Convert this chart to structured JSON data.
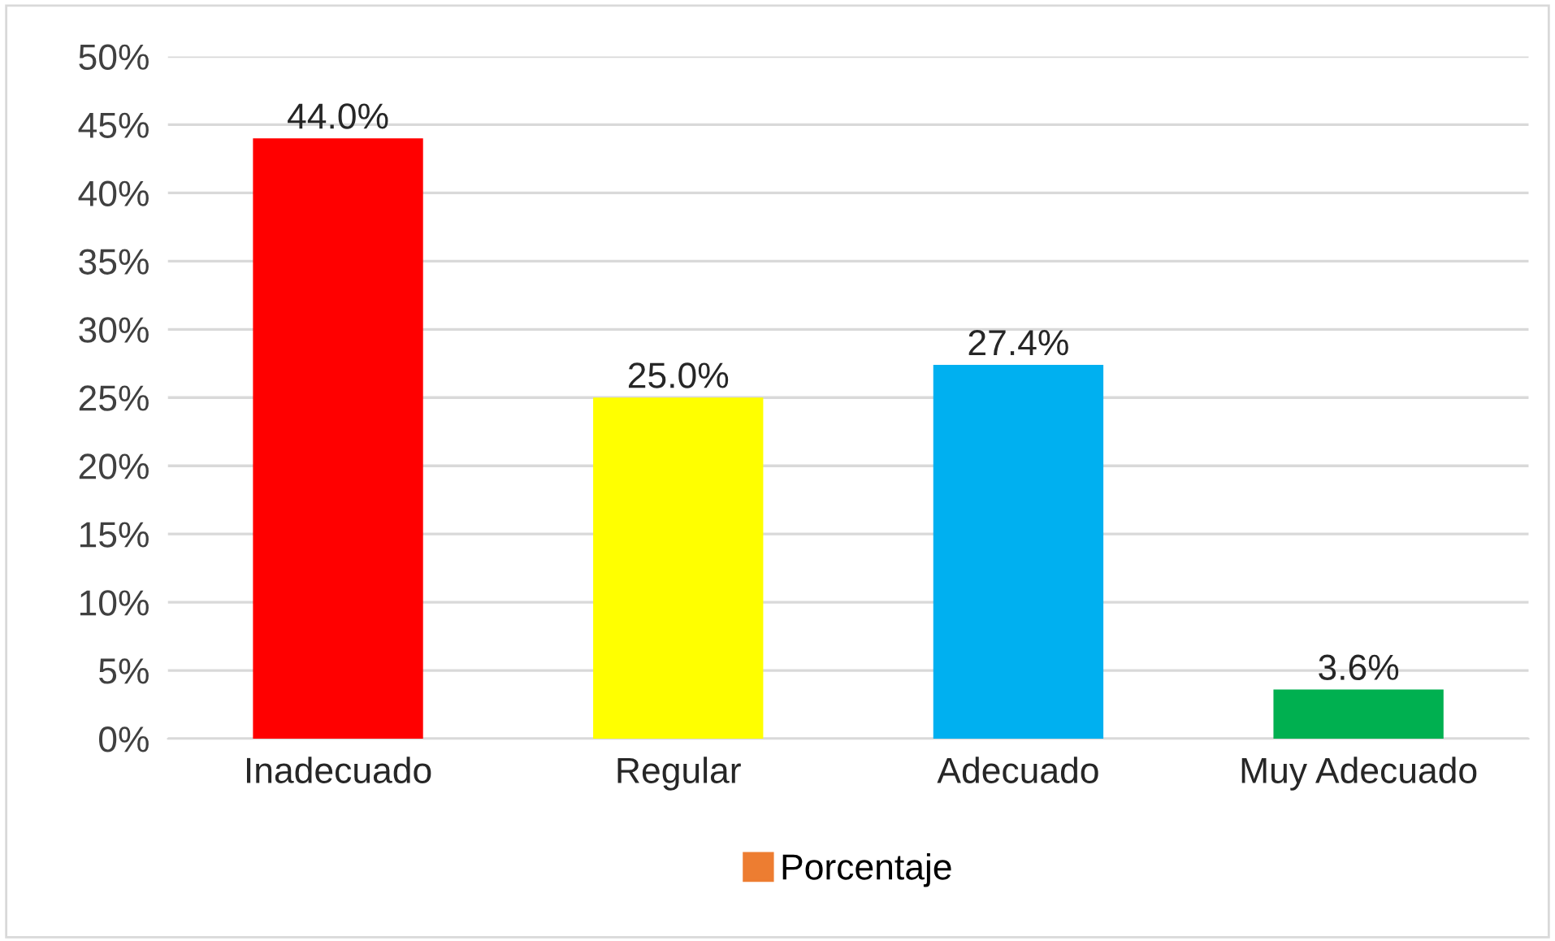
{
  "chart_data": {
    "type": "bar",
    "categories": [
      "Inadecuado",
      "Regular",
      "Adecuado",
      "Muy Adecuado"
    ],
    "series": [
      {
        "name": "Porcentaje",
        "color": "#ed7d31",
        "colors": [
          "#ff0000",
          "#ffff00",
          "#00b0f0",
          "#00b050"
        ],
        "values": [
          44.0,
          25.0,
          27.4,
          3.6
        ],
        "value_labels": [
          "44.0%",
          "25.0%",
          "27.4%",
          "3.6%"
        ]
      }
    ],
    "ylim": [
      0,
      50
    ],
    "yticks": [
      {
        "value": 0,
        "label": "0%"
      },
      {
        "value": 5,
        "label": "5%"
      },
      {
        "value": 10,
        "label": "10%"
      },
      {
        "value": 15,
        "label": "15%"
      },
      {
        "value": 20,
        "label": "20%"
      },
      {
        "value": 25,
        "label": "25%"
      },
      {
        "value": 30,
        "label": "30%"
      },
      {
        "value": 35,
        "label": "35%"
      },
      {
        "value": 40,
        "label": "40%"
      },
      {
        "value": 45,
        "label": "45%"
      },
      {
        "value": 50,
        "label": "50%"
      }
    ],
    "grid": "y",
    "legend": "bottom"
  }
}
